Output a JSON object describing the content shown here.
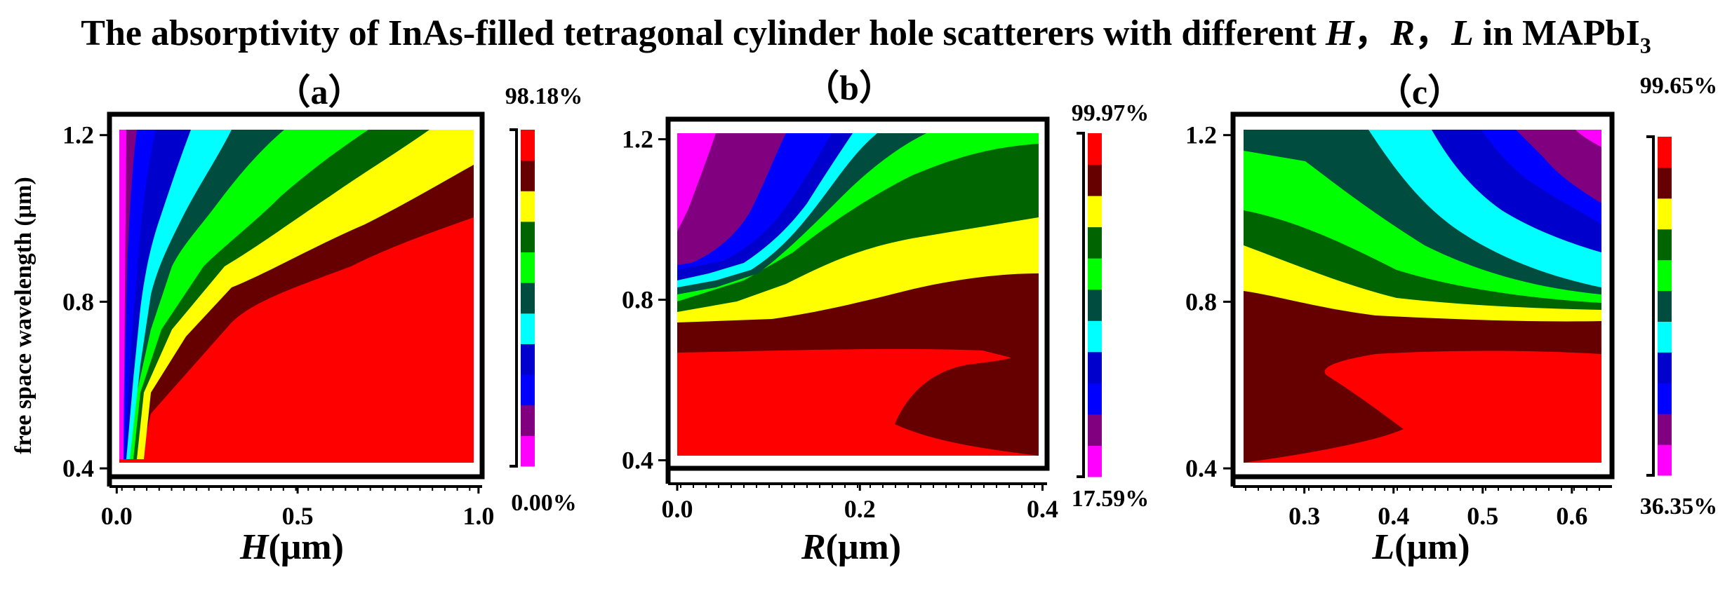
{
  "title": {
    "prefix": "The absorptivity of  InAs-filled tetragonal cylinder hole scatterers with different ",
    "h": "H",
    "sep1": "，",
    "r": "R",
    "sep2": "，",
    "l": "L",
    "in_text": " in MAPbI",
    "subscript": "3"
  },
  "colors": {
    "levels": [
      "#ff00ff",
      "#800080",
      "#0000ff",
      "#0000cd",
      "#00ffff",
      "#004d40",
      "#00ff00",
      "#006400",
      "#ffff00",
      "#660000",
      "#ff0000"
    ]
  },
  "chart_data": [
    {
      "type": "heatmap",
      "panel_label": "（a）",
      "xlabel_var": "H",
      "xlabel_unit": "(μm)",
      "ylabel": "free space wavelength (μm)",
      "x_ticks": [
        "0.0",
        "0.5",
        "1.0"
      ],
      "y_ticks": [
        "0.4",
        "0.8",
        "1.2"
      ],
      "xlim": [
        -0.02,
        1.01
      ],
      "ylim": [
        0.38,
        1.25
      ],
      "colorbar_max": "98.18%",
      "colorbar_min": "0.00%",
      "n_levels": 11,
      "description_levels": "absorption increases with H; highest (red) at large H and short wavelength"
    },
    {
      "type": "heatmap",
      "panel_label": "（b）",
      "xlabel_var": "R",
      "xlabel_unit": "(μm)",
      "ylabel": "",
      "x_ticks": [
        "0.0",
        "0.2",
        "0.4"
      ],
      "y_ticks": [
        "0.4",
        "0.8",
        "1.2"
      ],
      "xlim": [
        -0.01,
        0.405
      ],
      "ylim": [
        0.38,
        1.25
      ],
      "colorbar_max": "99.97%",
      "colorbar_min": "17.59%",
      "n_levels": 11
    },
    {
      "type": "heatmap",
      "panel_label": "（c）",
      "xlabel_var": "L",
      "xlabel_unit": "(μm)",
      "ylabel": "",
      "x_ticks": [
        "0.3",
        "0.4",
        "0.5",
        "0.6"
      ],
      "y_ticks": [
        "0.4",
        "0.8",
        "1.2"
      ],
      "xlim": [
        0.22,
        0.645
      ],
      "ylim": [
        0.38,
        1.25
      ],
      "colorbar_max": "99.65%",
      "colorbar_min": "36.35%",
      "n_levels": 11
    }
  ]
}
